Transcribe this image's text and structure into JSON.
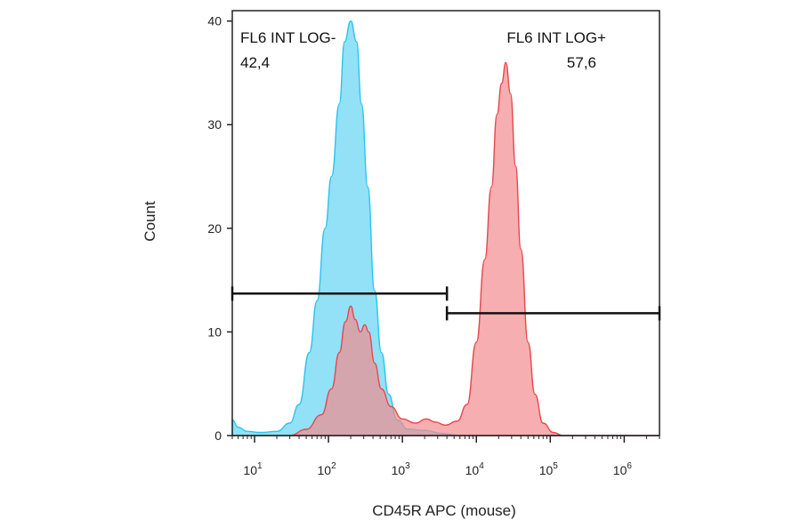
{
  "chart_data": {
    "type": "area",
    "xlabel": "CD45R APC (mouse)",
    "ylabel": "Count",
    "x_scale": "log",
    "xlim": [
      5,
      3000000
    ],
    "ylim": [
      0,
      41
    ],
    "y_ticks": [
      0,
      10,
      20,
      30,
      40
    ],
    "x_ticks": [
      {
        "value": 10,
        "base": "10",
        "exp": "1"
      },
      {
        "value": 100,
        "base": "10",
        "exp": "2"
      },
      {
        "value": 1000,
        "base": "10",
        "exp": "3"
      },
      {
        "value": 10000,
        "base": "10",
        "exp": "4"
      },
      {
        "value": 100000,
        "base": "10",
        "exp": "5"
      },
      {
        "value": 1000000,
        "base": "10",
        "exp": "6"
      }
    ],
    "series": [
      {
        "color": "#29c5ee",
        "fill": "#7fdcf6",
        "points": [
          [
            5,
            1.5
          ],
          [
            6,
            0.8
          ],
          [
            8,
            0.4
          ],
          [
            12,
            0.3
          ],
          [
            20,
            0.4
          ],
          [
            30,
            1.2
          ],
          [
            40,
            3
          ],
          [
            55,
            8
          ],
          [
            70,
            13
          ],
          [
            90,
            20
          ],
          [
            110,
            25
          ],
          [
            140,
            32
          ],
          [
            165,
            38
          ],
          [
            200,
            40
          ],
          [
            240,
            38
          ],
          [
            280,
            32
          ],
          [
            340,
            24
          ],
          [
            420,
            14
          ],
          [
            520,
            8
          ],
          [
            650,
            4
          ],
          [
            850,
            1.5
          ],
          [
            1200,
            0.6
          ],
          [
            2000,
            0.5
          ],
          [
            3500,
            0.2
          ],
          [
            6000,
            0
          ],
          [
            3000000,
            0
          ]
        ]
      },
      {
        "color": "#e8474c",
        "fill": "#f28b8e",
        "points": [
          [
            5,
            0
          ],
          [
            30,
            0
          ],
          [
            50,
            0.6
          ],
          [
            80,
            2
          ],
          [
            110,
            4.5
          ],
          [
            140,
            8
          ],
          [
            170,
            11
          ],
          [
            200,
            12.5
          ],
          [
            230,
            11.2
          ],
          [
            270,
            10
          ],
          [
            310,
            10.7
          ],
          [
            350,
            10
          ],
          [
            420,
            7
          ],
          [
            520,
            4.5
          ],
          [
            700,
            2.8
          ],
          [
            1000,
            1.6
          ],
          [
            1500,
            1.2
          ],
          [
            2100,
            1.6
          ],
          [
            2800,
            1.3
          ],
          [
            3800,
            1
          ],
          [
            5500,
            1.4
          ],
          [
            7500,
            3
          ],
          [
            10000,
            9
          ],
          [
            13000,
            17
          ],
          [
            16000,
            24
          ],
          [
            19000,
            31
          ],
          [
            22000,
            34
          ],
          [
            25000,
            36
          ],
          [
            29000,
            33
          ],
          [
            34000,
            26
          ],
          [
            40000,
            18
          ],
          [
            50000,
            9
          ],
          [
            62000,
            4
          ],
          [
            80000,
            1.2
          ],
          [
            110000,
            0.3
          ],
          [
            150000,
            0
          ],
          [
            3000000,
            0
          ]
        ]
      }
    ],
    "gates": [
      {
        "name": "FL6 INT LOG-",
        "percent": "42,4",
        "x_start": 5,
        "x_end": 4000,
        "y": 13.7
      },
      {
        "name": "FL6 INT LOG+",
        "percent": "57,6",
        "x_start": 4000,
        "x_end": 3000000,
        "y": 11.8
      }
    ]
  }
}
